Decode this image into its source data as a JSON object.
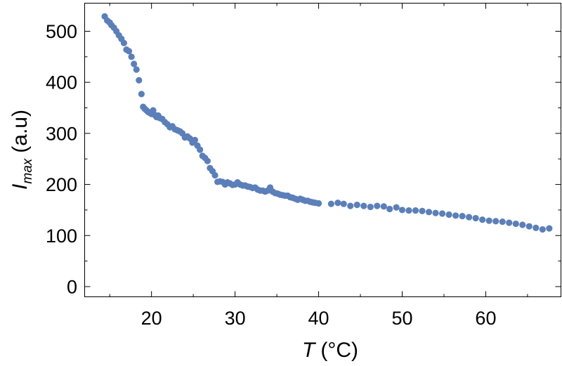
{
  "chart_data": {
    "type": "scatter",
    "title": "",
    "xlabel": {
      "symbol": "T",
      "unit": "(°C)"
    },
    "ylabel": {
      "symbol": "I",
      "subscript": "max",
      "unit": "(a.u)"
    },
    "xlim": [
      12,
      69
    ],
    "ylim": [
      -20,
      555
    ],
    "xticks": [
      20,
      30,
      40,
      50,
      60
    ],
    "xticks_minor": [
      15,
      25,
      35,
      45,
      55,
      65
    ],
    "yticks": [
      0,
      100,
      200,
      300,
      400,
      500
    ],
    "yticks_minor": [
      50,
      150,
      250,
      350,
      450
    ],
    "grid": false,
    "legend": "none",
    "colors": {
      "points": "#5b7fb8"
    },
    "series": [
      {
        "x": [
          14.4,
          14.7,
          15.0,
          15.2,
          15.5,
          15.8,
          16.1,
          16.4,
          16.7,
          17.0,
          17.3,
          17.6,
          17.9,
          18.2,
          18.5,
          18.8,
          19.0,
          19.2,
          19.4,
          19.6,
          19.8,
          20.0,
          20.2,
          20.4,
          20.6,
          20.8,
          21.0,
          21.3,
          21.6,
          21.9,
          22.2,
          22.5,
          22.8,
          23.1,
          23.4,
          23.7,
          24.0,
          24.3,
          24.6,
          24.9,
          25.2,
          25.5,
          25.8,
          26.1,
          26.4,
          26.7,
          27.0,
          27.3,
          27.6,
          27.9,
          28.2,
          28.5,
          28.8,
          29.1,
          29.4,
          29.7,
          30.0,
          30.3,
          30.6,
          30.9,
          31.2,
          31.5,
          31.8,
          32.1,
          32.4,
          32.7,
          33.0,
          33.3,
          33.6,
          33.9,
          34.2,
          34.5,
          34.8,
          35.1,
          35.4,
          35.7,
          36.0,
          36.3,
          36.6,
          36.9,
          37.2,
          37.5,
          37.8,
          38.1,
          38.4,
          38.7,
          39.0,
          39.3,
          39.6,
          40.0,
          41.5,
          42.3,
          43.0,
          43.8,
          44.6,
          45.4,
          46.2,
          47.0,
          47.8,
          48.5,
          49.3,
          50.0,
          50.8,
          51.6,
          52.4,
          53.2,
          54.0,
          54.8,
          55.6,
          56.4,
          57.2,
          58.0,
          58.8,
          59.6,
          60.4,
          61.2,
          62.0,
          62.8,
          63.6,
          64.4,
          65.2,
          66.0,
          66.8,
          67.6
        ],
        "y": [
          529,
          521,
          517,
          512,
          507,
          500,
          492,
          485,
          477,
          464,
          461,
          450,
          436,
          425,
          404,
          377,
          352,
          348,
          345,
          342,
          340,
          338,
          345,
          336,
          332,
          335,
          330,
          328,
          322,
          318,
          312,
          314,
          308,
          306,
          304,
          300,
          292,
          294,
          290,
          282,
          287,
          276,
          268,
          256,
          252,
          246,
          232,
          226,
          218,
          205,
          206,
          205,
          200,
          204,
          202,
          199,
          200,
          204,
          200,
          198,
          198,
          196,
          195,
          193,
          194,
          190,
          188,
          188,
          186,
          188,
          194,
          186,
          183,
          182,
          180,
          179,
          178,
          178,
          175,
          174,
          172,
          170,
          172,
          170,
          168,
          168,
          166,
          165,
          164,
          163,
          162,
          164,
          162,
          158,
          160,
          158,
          156,
          158,
          157,
          152,
          155,
          150,
          149,
          149,
          148,
          146,
          144,
          143,
          141,
          139,
          138,
          136,
          134,
          131,
          129,
          128,
          127,
          125,
          123,
          121,
          118,
          115,
          112,
          114
        ]
      }
    ]
  }
}
